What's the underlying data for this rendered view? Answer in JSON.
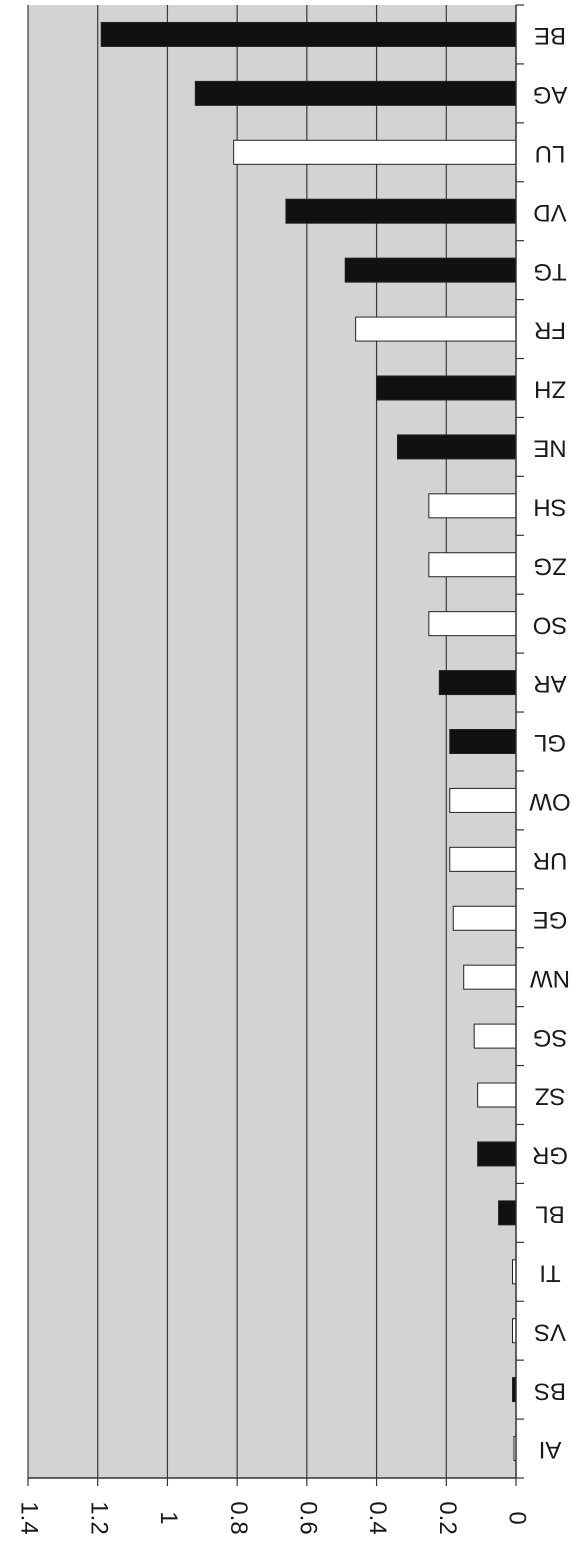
{
  "chart_data": {
    "type": "bar",
    "orientation": "horizontal",
    "categories": [
      "BE",
      "AG",
      "LU",
      "VD",
      "TG",
      "FR",
      "ZH",
      "NE",
      "SH",
      "ZG",
      "SO",
      "AR",
      "GL",
      "OW",
      "UR",
      "GE",
      "NW",
      "SG",
      "SZ",
      "GR",
      "BL",
      "TI",
      "VS",
      "BS",
      "AI"
    ],
    "values": [
      1.19,
      0.92,
      0.81,
      0.66,
      0.49,
      0.46,
      0.4,
      0.34,
      0.25,
      0.25,
      0.25,
      0.22,
      0.19,
      0.19,
      0.19,
      0.18,
      0.15,
      0.12,
      0.11,
      0.11,
      0.05,
      0.01,
      0.01,
      0.01,
      0.005
    ],
    "bar_fill": [
      "dark",
      "dark",
      "light",
      "dark",
      "dark",
      "light",
      "dark",
      "dark",
      "light",
      "light",
      "light",
      "dark",
      "dark",
      "light",
      "light",
      "light",
      "light",
      "light",
      "light",
      "dark",
      "dark",
      "light",
      "light",
      "dark",
      "light"
    ],
    "xlim": [
      0,
      1.4
    ],
    "xticks": [
      "0",
      "0.2",
      "0.4",
      "0.6",
      "0.8",
      "1",
      "1.2",
      "1.4"
    ],
    "xtick_values": [
      0,
      0.2,
      0.4,
      0.6,
      0.8,
      1.0,
      1.2,
      1.4
    ],
    "grid": true,
    "rotated": "180deg",
    "colors": {
      "plot_background": "#d3d3d3",
      "dark_bar": "#111111",
      "light_bar": "#ffffff",
      "gridline": "#3a3a3a",
      "axis": "#333333"
    }
  }
}
